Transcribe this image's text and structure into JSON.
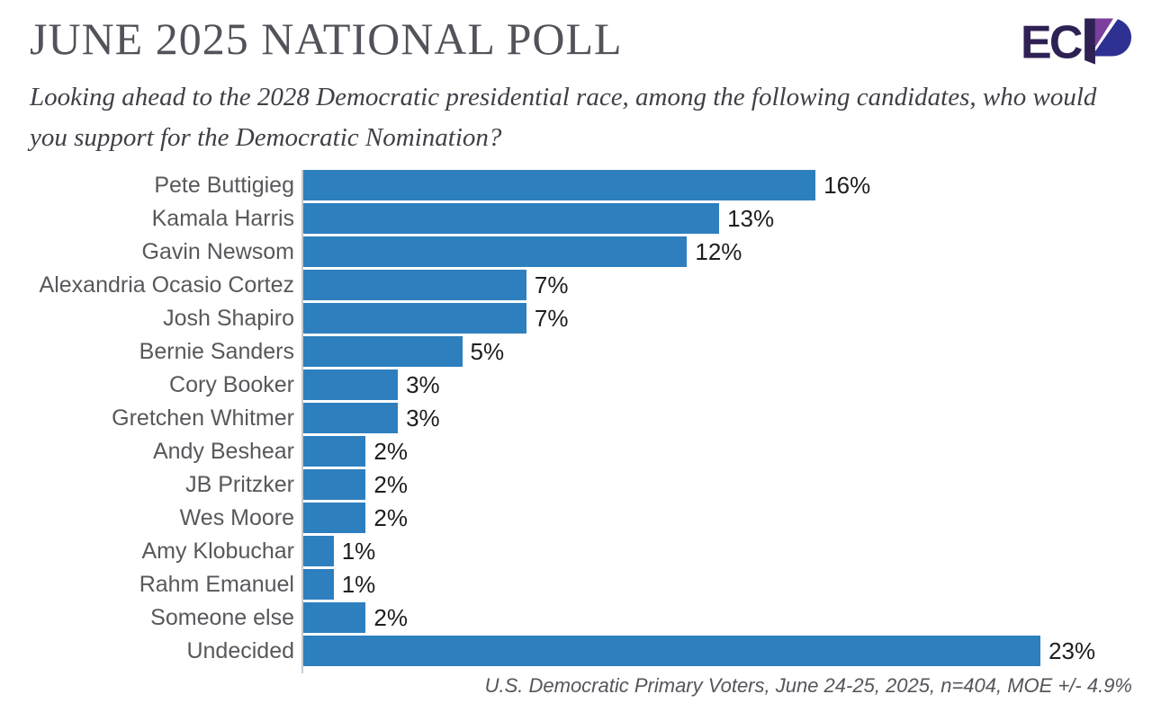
{
  "header": {
    "title": "JUNE 2025 NATIONAL POLL",
    "logo_text": "EC",
    "logo_name": "ECP",
    "logo_colors": {
      "dark": "#2F2153",
      "purple": "#7C3F9E",
      "navy": "#2E3192"
    }
  },
  "question": "Looking ahead to the 2028 Democratic presidential race, among the following candidates, who would you support for the Democratic Nomination?",
  "footnote": "U.S. Democratic Primary Voters, June 24-25, 2025, n=404, MOE +/- 4.9%",
  "colors": {
    "title": "#53525A",
    "question": "#3F3F47",
    "category_label": "#58585C",
    "value_label": "#1E1E1E",
    "axis_line": "#C2CBD2",
    "footnote": "#54565C"
  },
  "chart_data": {
    "type": "bar",
    "orientation": "horizontal",
    "title": "JUNE 2025 NATIONAL POLL",
    "categories": [
      "Pete Buttigieg",
      "Kamala Harris",
      "Gavin Newsom",
      "Alexandria Ocasio Cortez",
      "Josh Shapiro",
      "Bernie Sanders",
      "Cory Booker",
      "Gretchen Whitmer",
      "Andy Beshear",
      "JB Pritzker",
      "Wes Moore",
      "Amy Klobuchar",
      "Rahm Emanuel",
      "Someone else",
      "Undecided"
    ],
    "values": [
      16,
      13,
      12,
      7,
      7,
      5,
      3,
      3,
      2,
      2,
      2,
      1,
      1,
      2,
      23
    ],
    "value_labels": [
      "16%",
      "13%",
      "12%",
      "7%",
      "7%",
      "5%",
      "3%",
      "3%",
      "2%",
      "2%",
      "2%",
      "1%",
      "1%",
      "2%",
      "23%"
    ],
    "bar_color": "#2E7FBE",
    "xlim": [
      0,
      23
    ],
    "xlabel": "",
    "ylabel": "",
    "grid": false,
    "legend_position": "none",
    "value_label_position": "outside-end"
  }
}
